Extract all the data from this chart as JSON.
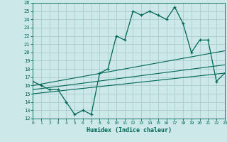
{
  "title": "",
  "xlabel": "Humidex (Indice chaleur)",
  "background_color": "#cce8e8",
  "grid_color": "#aacccc",
  "line_color": "#006655",
  "xlim": [
    0,
    23
  ],
  "ylim": [
    12,
    26
  ],
  "xticks": [
    0,
    1,
    2,
    3,
    4,
    5,
    6,
    7,
    8,
    9,
    10,
    11,
    12,
    13,
    14,
    15,
    16,
    17,
    18,
    19,
    20,
    21,
    22,
    23
  ],
  "yticks": [
    12,
    13,
    14,
    15,
    16,
    17,
    18,
    19,
    20,
    21,
    22,
    23,
    24,
    25,
    26
  ],
  "main_x": [
    0,
    1,
    2,
    3,
    4,
    5,
    6,
    7,
    8,
    9,
    10,
    11,
    12,
    13,
    14,
    15,
    16,
    17,
    18,
    19,
    20,
    21,
    22,
    23
  ],
  "main_y": [
    16.5,
    16.0,
    15.5,
    15.5,
    14.0,
    12.5,
    13.0,
    12.5,
    17.5,
    18.0,
    22.0,
    21.5,
    25.0,
    24.5,
    25.0,
    24.5,
    24.0,
    25.5,
    23.5,
    20.0,
    21.5,
    21.5,
    16.5,
    17.5
  ],
  "line1_x": [
    0,
    23
  ],
  "line1_y": [
    16.0,
    20.2
  ],
  "line2_x": [
    0,
    23
  ],
  "line2_y": [
    15.5,
    18.5
  ],
  "line3_x": [
    0,
    23
  ],
  "line3_y": [
    15.0,
    17.5
  ]
}
